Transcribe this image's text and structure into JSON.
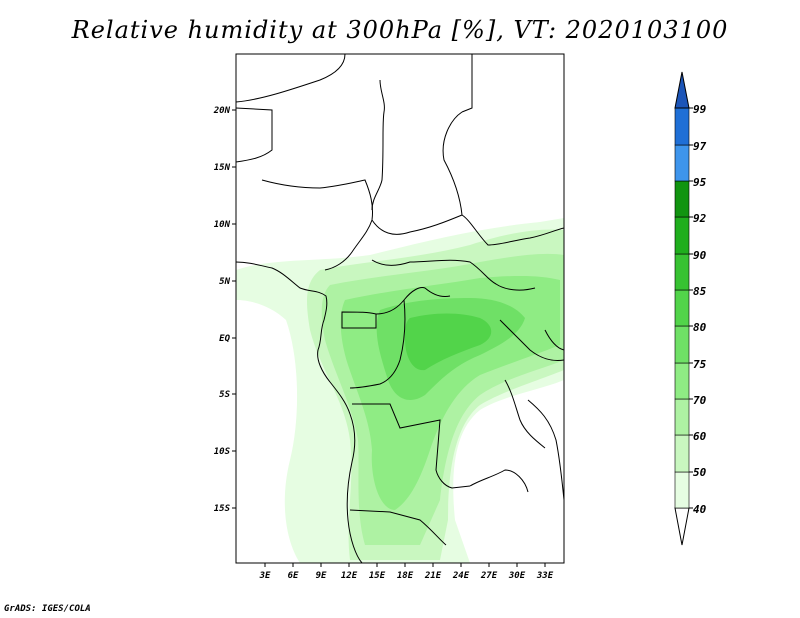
{
  "title": "Relative humidity at 300hPa [%], VT: 2020103100",
  "credit": "GrADS: IGES/COLA",
  "map": {
    "lat_labels": [
      "20N",
      "15N",
      "10N",
      "5N",
      "EQ",
      "5S",
      "10S",
      "15S"
    ],
    "lon_labels": [
      "3E",
      "6E",
      "9E",
      "12E",
      "15E",
      "18E",
      "21E",
      "24E",
      "27E",
      "30E",
      "33E"
    ]
  },
  "colorbar": {
    "levels": [
      "40",
      "50",
      "60",
      "70",
      "75",
      "80",
      "85",
      "90",
      "92",
      "95",
      "97",
      "99"
    ],
    "colors": [
      "#ffffff",
      "#e6fde2",
      "#c9f7c0",
      "#aef2a3",
      "#8fec84",
      "#6fe066",
      "#52d44a",
      "#37c232",
      "#1fae1d",
      "#119410",
      "#3e95ec",
      "#1f6fd6",
      "#1c55b8"
    ]
  }
}
